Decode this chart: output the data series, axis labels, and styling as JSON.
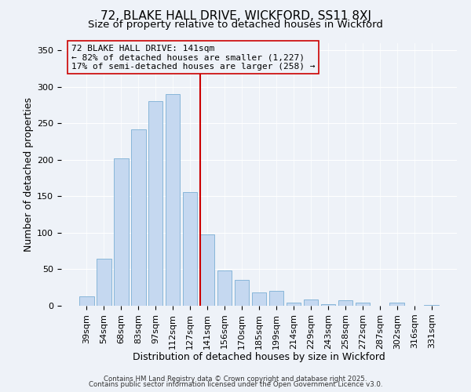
{
  "title": "72, BLAKE HALL DRIVE, WICKFORD, SS11 8XJ",
  "subtitle": "Size of property relative to detached houses in Wickford",
  "xlabel": "Distribution of detached houses by size in Wickford",
  "ylabel": "Number of detached properties",
  "bar_labels": [
    "39sqm",
    "54sqm",
    "68sqm",
    "83sqm",
    "97sqm",
    "112sqm",
    "127sqm",
    "141sqm",
    "156sqm",
    "170sqm",
    "185sqm",
    "199sqm",
    "214sqm",
    "229sqm",
    "243sqm",
    "258sqm",
    "272sqm",
    "287sqm",
    "302sqm",
    "316sqm",
    "331sqm"
  ],
  "bar_values": [
    13,
    65,
    202,
    242,
    281,
    290,
    156,
    98,
    48,
    36,
    18,
    20,
    4,
    9,
    2,
    8,
    4,
    0,
    4,
    0,
    1
  ],
  "bar_color": "#c5d8f0",
  "bar_edgecolor": "#7bafd4",
  "vline_index": 7,
  "vline_color": "#cc0000",
  "annotation_text": "72 BLAKE HALL DRIVE: 141sqm\n← 82% of detached houses are smaller (1,227)\n17% of semi-detached houses are larger (258) →",
  "annotation_box_edgecolor": "#cc0000",
  "ylim": [
    0,
    360
  ],
  "yticks": [
    0,
    50,
    100,
    150,
    200,
    250,
    300,
    350
  ],
  "footer1": "Contains HM Land Registry data © Crown copyright and database right 2025.",
  "footer2": "Contains public sector information licensed under the Open Government Licence v3.0.",
  "background_color": "#eef2f8",
  "title_fontsize": 11,
  "subtitle_fontsize": 9.5,
  "xlabel_fontsize": 9,
  "ylabel_fontsize": 9,
  "tick_fontsize": 8,
  "annot_fontsize": 8
}
